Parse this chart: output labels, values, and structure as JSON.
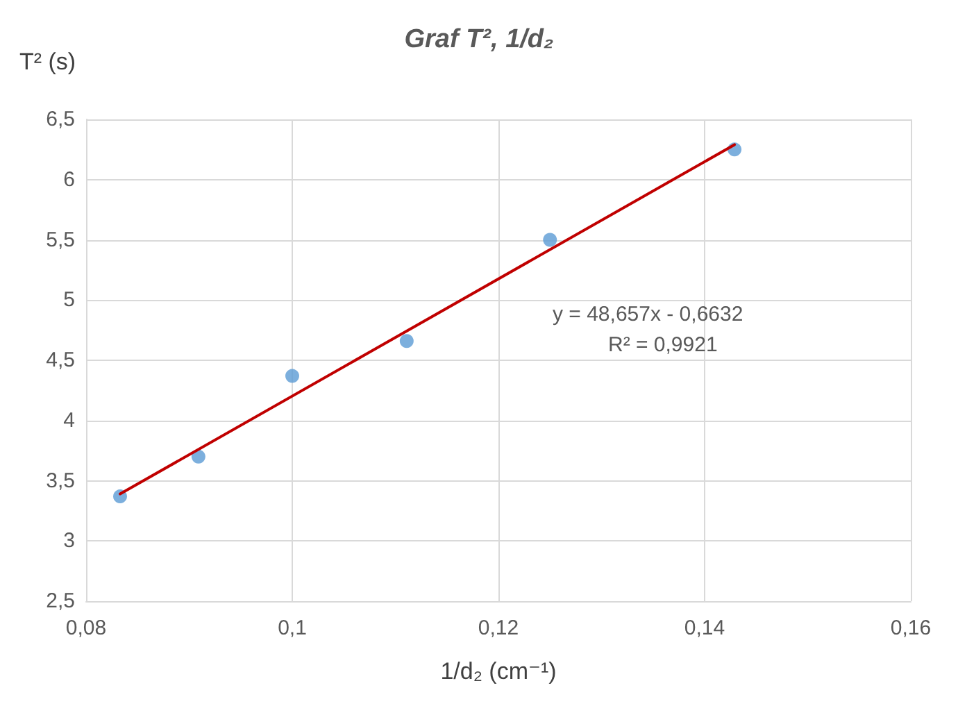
{
  "chart_data": {
    "type": "scatter",
    "title": "Graf T², 1/d₂",
    "xlabel": "1/d₂ (cm⁻¹)",
    "ylabel": "T² (s)",
    "x": [
      0.0833,
      0.0909,
      0.1,
      0.1111,
      0.125,
      0.1429
    ],
    "series": [
      {
        "color": "#5b9bd5",
        "marker": "circle",
        "values": [
          3.37,
          3.7,
          4.37,
          4.66,
          5.5,
          6.25
        ]
      },
      {
        "type": "line",
        "color": "#c00000",
        "marker": "none",
        "line_style": "solid",
        "x": [
          0.0833,
          0.1429
        ],
        "values": [
          3.39,
          6.29
        ]
      }
    ],
    "annotations": [
      "y = 48,657x - 0,6632",
      "R² = 0,9921"
    ],
    "xlim": [
      0.08,
      0.16
    ],
    "xticks": [
      {
        "value": 0.08,
        "label": "0,08"
      },
      {
        "value": 0.1,
        "label": "0,1"
      },
      {
        "value": 0.12,
        "label": "0,12"
      },
      {
        "value": 0.14,
        "label": "0,14"
      },
      {
        "value": 0.16,
        "label": "0,16"
      }
    ],
    "ylim": [
      2.5,
      6.5
    ],
    "yticks": [
      {
        "value": 2.5,
        "label": "2,5"
      },
      3,
      {
        "value": 3.5,
        "label": "3,5"
      },
      4,
      {
        "value": 4.5,
        "label": "4,5"
      },
      5,
      {
        "value": 5.5,
        "label": "5,5"
      },
      6,
      {
        "value": 6.5,
        "label": "6,5"
      }
    ],
    "grid": true
  }
}
